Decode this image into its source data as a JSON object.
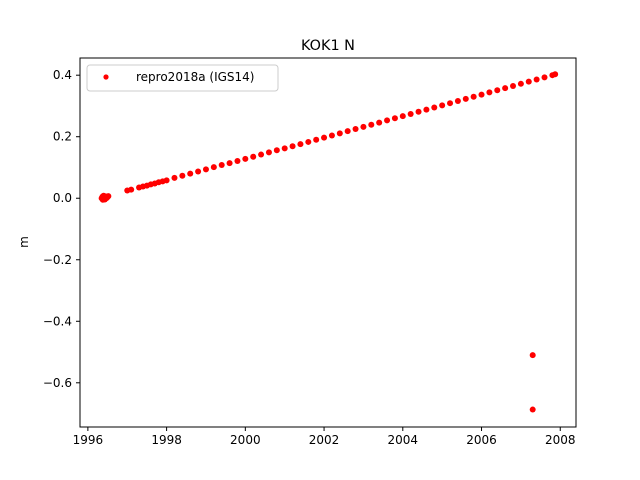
{
  "chart_data": {
    "type": "scatter",
    "title": "KOK1 N",
    "xlabel": "",
    "ylabel": "m",
    "xlim": [
      1995.8,
      2008.4
    ],
    "ylim": [
      -0.7437,
      0.4559
    ],
    "xticks": [
      1996,
      1998,
      2000,
      2002,
      2004,
      2006,
      2008
    ],
    "xtick_labels": [
      "1996",
      "1998",
      "2000",
      "2002",
      "2004",
      "2006",
      "2008"
    ],
    "yticks": [
      -0.6,
      -0.4,
      -0.2,
      0.0,
      0.2,
      0.4
    ],
    "ytick_labels": [
      "−0.6",
      "−0.4",
      "−0.2",
      "0.0",
      "0.2",
      "0.4"
    ],
    "grid": false,
    "legend_position": "upper left",
    "series": [
      {
        "name": "repro2018a (IGS14)",
        "color": "#ff0000",
        "marker": "dot",
        "x": [
          1996.35,
          1996.37,
          1996.38,
          1996.4,
          1996.42,
          1996.43,
          1996.45,
          1996.47,
          1996.5,
          1996.52,
          1997.0,
          1997.1,
          1997.3,
          1997.4,
          1997.5,
          1997.6,
          1997.7,
          1997.8,
          1997.9,
          1998.0,
          1998.2,
          1998.4,
          1998.6,
          1998.8,
          1999.0,
          1999.2,
          1999.4,
          1999.6,
          1999.8,
          2000.0,
          2000.2,
          2000.4,
          2000.6,
          2000.8,
          2001.0,
          2001.2,
          2001.4,
          2001.6,
          2001.8,
          2002.0,
          2002.2,
          2002.4,
          2002.6,
          2002.8,
          2003.0,
          2003.2,
          2003.4,
          2003.6,
          2003.8,
          2004.0,
          2004.2,
          2004.4,
          2004.6,
          2004.8,
          2005.0,
          2005.2,
          2005.4,
          2005.6,
          2005.8,
          2006.0,
          2006.2,
          2006.4,
          2006.6,
          2006.8,
          2007.0,
          2007.2,
          2007.4,
          2007.6,
          2007.8,
          2007.87,
          2007.3,
          2007.3
        ],
        "y": [
          0.0,
          0.005,
          -0.005,
          0.008,
          0.002,
          -0.004,
          0.006,
          0.0,
          0.004,
          0.007,
          0.025,
          0.028,
          0.035,
          0.038,
          0.041,
          0.045,
          0.048,
          0.052,
          0.055,
          0.058,
          0.066,
          0.073,
          0.08,
          0.087,
          0.094,
          0.101,
          0.108,
          0.114,
          0.121,
          0.128,
          0.135,
          0.142,
          0.149,
          0.156,
          0.162,
          0.169,
          0.176,
          0.183,
          0.19,
          0.197,
          0.204,
          0.211,
          0.218,
          0.225,
          0.232,
          0.239,
          0.246,
          0.253,
          0.26,
          0.267,
          0.274,
          0.281,
          0.288,
          0.295,
          0.302,
          0.309,
          0.316,
          0.323,
          0.33,
          0.337,
          0.344,
          0.351,
          0.358,
          0.365,
          0.372,
          0.379,
          0.386,
          0.393,
          0.4,
          0.403,
          -0.51,
          -0.687
        ]
      }
    ]
  }
}
